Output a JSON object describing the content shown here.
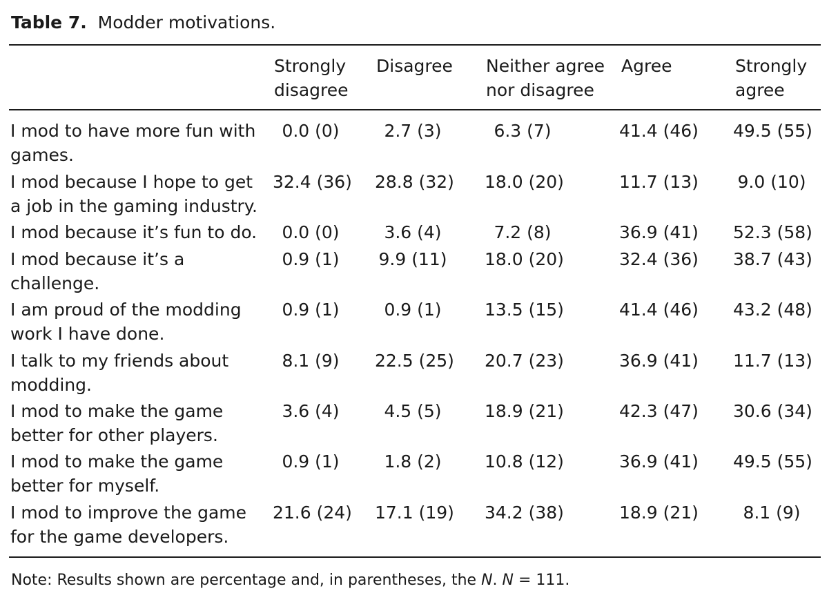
{
  "caption": {
    "label": "Table 7.",
    "text": "Modder motivations."
  },
  "columns": [
    "Strongly\ndisagree",
    "Disagree",
    "Neither agree\nnor disagree",
    "Agree",
    "Strongly\nagree"
  ],
  "rows": [
    {
      "label": "I mod to have more fun with\ngames.",
      "values": [
        "0.0 (0)",
        "2.7 (3)",
        "6.3 (7)",
        "41.4 (46)",
        "49.5 (55)"
      ]
    },
    {
      "label": "I mod because I hope to get\na job in the gaming industry.",
      "values": [
        "32.4 (36)",
        "28.8 (32)",
        "18.0 (20)",
        "11.7 (13)",
        "9.0 (10)"
      ]
    },
    {
      "label": "I mod because it’s fun to do.",
      "values": [
        "0.0 (0)",
        "3.6 (4)",
        "7.2 (8)",
        "36.9 (41)",
        "52.3 (58)"
      ]
    },
    {
      "label": "I mod because it’s a\nchallenge.",
      "values": [
        "0.9 (1)",
        "9.9 (11)",
        "18.0 (20)",
        "32.4 (36)",
        "38.7 (43)"
      ]
    },
    {
      "label": "I am proud of the modding\nwork I have done.",
      "values": [
        "0.9 (1)",
        "0.9 (1)",
        "13.5 (15)",
        "41.4 (46)",
        "43.2 (48)"
      ]
    },
    {
      "label": "I talk to my friends about\nmodding.",
      "values": [
        "8.1 (9)",
        "22.5 (25)",
        "20.7 (23)",
        "36.9 (41)",
        "11.7 (13)"
      ]
    },
    {
      "label": "I mod to make the game\nbetter for other players.",
      "values": [
        "3.6 (4)",
        "4.5 (5)",
        "18.9 (21)",
        "42.3 (47)",
        "30.6 (34)"
      ]
    },
    {
      "label": "I mod to make the game\nbetter for myself.",
      "values": [
        "0.9 (1)",
        "1.8 (2)",
        "10.8 (12)",
        "36.9 (41)",
        "49.5 (55)"
      ]
    },
    {
      "label": "I mod to improve the game\nfor the game developers.",
      "values": [
        "21.6 (24)",
        "17.1 (19)",
        "34.2 (38)",
        "18.9 (21)",
        "8.1 (9)"
      ]
    }
  ],
  "note": {
    "prefix": "Note: Results shown are percentage and, in parentheses, the ",
    "n1": "N",
    "mid": ". ",
    "n2": "N",
    "suffix": " = 111."
  }
}
